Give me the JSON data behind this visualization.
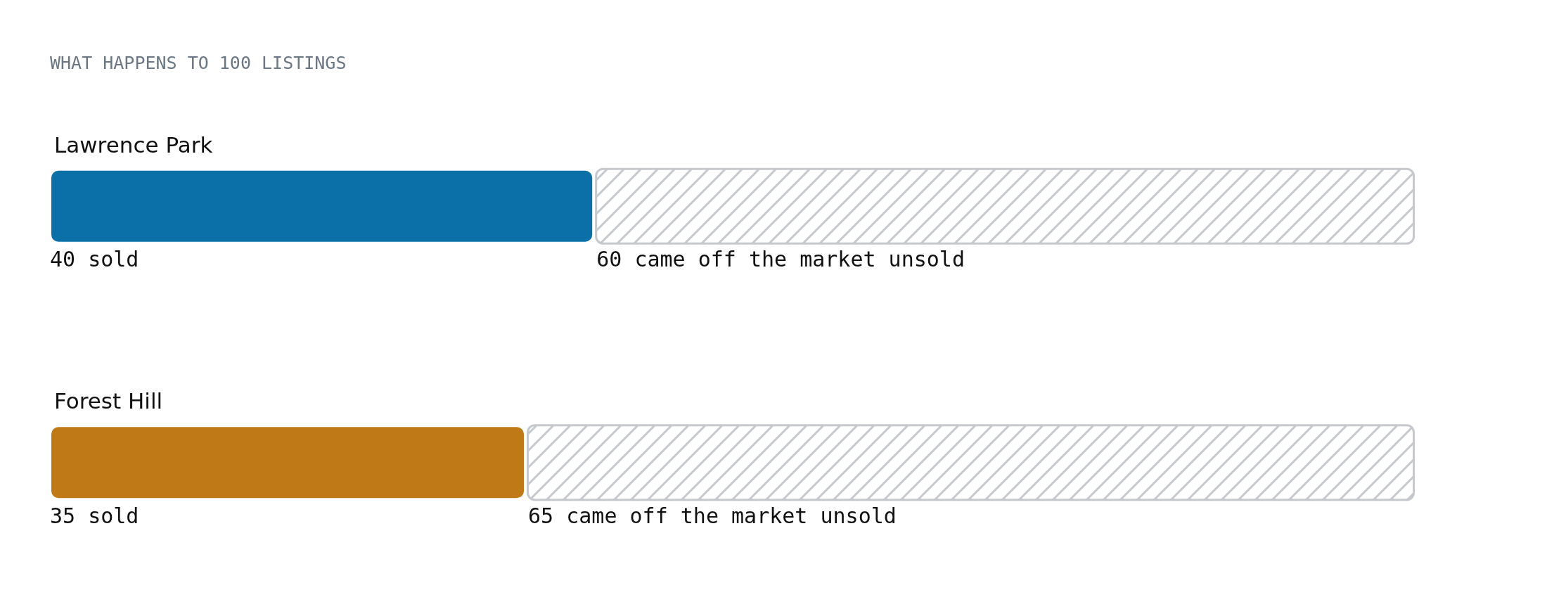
{
  "chart_data": {
    "type": "bar",
    "orientation": "horizontal",
    "stacked": true,
    "title": "WHAT HAPPENS TO 100 LISTINGS",
    "categories": [
      "Lawrence Park",
      "Forest Hill"
    ],
    "series": [
      {
        "colors": [
          "#0b6fa8",
          "#bf7a17"
        ],
        "values": [
          40,
          35
        ],
        "value_labels": [
          "40 sold",
          "35 sold"
        ]
      },
      {
        "color": "#c5c8cc",
        "values": [
          60,
          65
        ],
        "value_labels": [
          "60 came off the market unsold",
          "65 came off the market unsold"
        ]
      }
    ]
  }
}
